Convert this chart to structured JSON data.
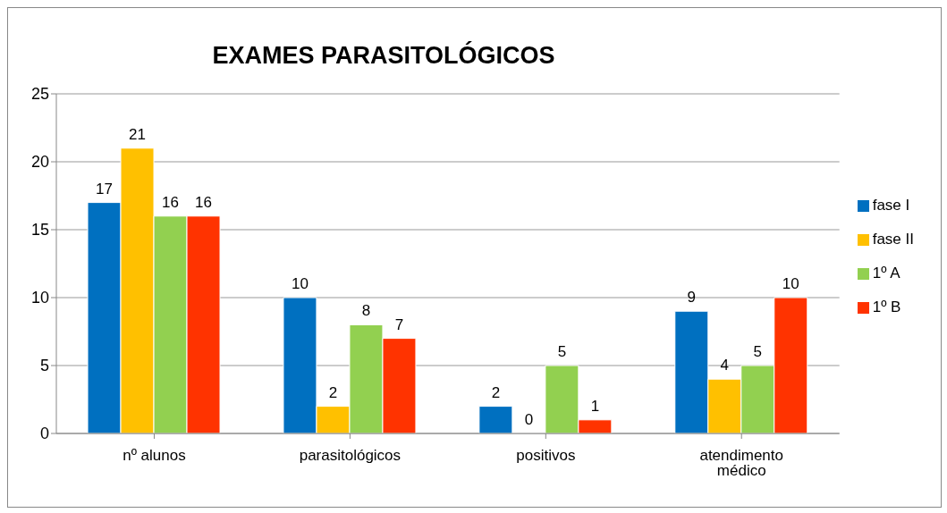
{
  "chart_data": {
    "type": "bar",
    "title": "EXAMES PARASITOLÓGICOS",
    "categories": [
      "nº alunos",
      "parasitológicos",
      "positivos",
      "atendimento médico"
    ],
    "series": [
      {
        "name": "fase I",
        "color": "#0070c0",
        "values": [
          17,
          10,
          2,
          9
        ]
      },
      {
        "name": "fase II",
        "color": "#ffc000",
        "values": [
          21,
          2,
          0,
          4
        ]
      },
      {
        "name": "1º A",
        "color": "#92d050",
        "values": [
          16,
          8,
          5,
          5
        ]
      },
      {
        "name": "1º B",
        "color": "#ff3300",
        "values": [
          16,
          7,
          1,
          10
        ]
      }
    ],
    "ylim": [
      0,
      25
    ],
    "yticks": [
      0,
      5,
      10,
      15,
      20,
      25
    ],
    "grid": "y",
    "legend": "right",
    "data_labels": true
  }
}
